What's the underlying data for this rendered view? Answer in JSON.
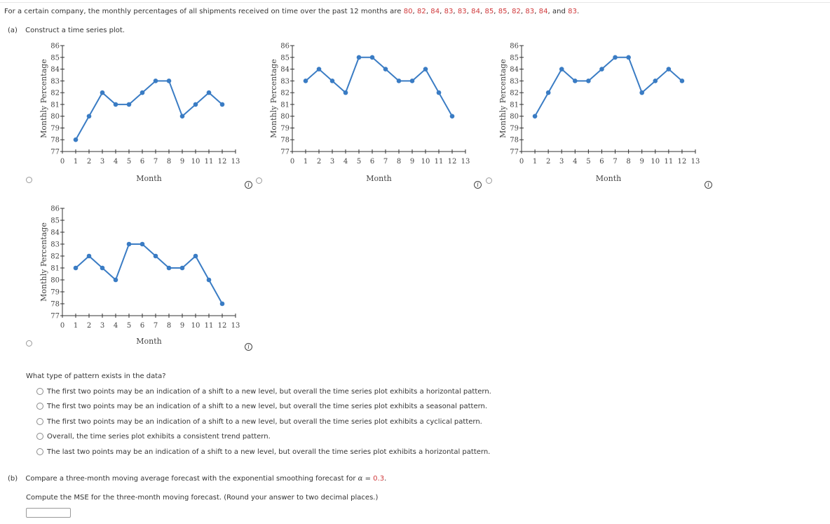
{
  "problem": {
    "intro_prefix": "For a certain company, the monthly percentages of all shipments received on time over the past 12 months are ",
    "values": [
      "80",
      "82",
      "84",
      "83",
      "83",
      "84",
      "85",
      "85",
      "82",
      "83",
      "84"
    ],
    "last_value": "83",
    "and_word": "and",
    "accent_color": "#d0393b"
  },
  "part_a": {
    "label": "(a)",
    "instruction": "Construct a time series plot."
  },
  "chart_data": [
    {
      "type": "line",
      "id": "option-1",
      "title": "",
      "xlabel": "Month",
      "ylabel": "Monthly Percentage",
      "x": [
        1,
        2,
        3,
        4,
        5,
        6,
        7,
        8,
        9,
        10,
        11,
        12
      ],
      "values": [
        78,
        80,
        82,
        81,
        81,
        82,
        83,
        83,
        80,
        81,
        82,
        81
      ],
      "xlim": [
        0,
        13
      ],
      "ylim": [
        77,
        86
      ],
      "xticks": [
        "0",
        "1",
        "2",
        "3",
        "4",
        "5",
        "6",
        "7",
        "8",
        "9",
        "10",
        "11",
        "12",
        "13"
      ],
      "yticks": [
        "77",
        "78",
        "79",
        "80",
        "81",
        "82",
        "83",
        "84",
        "85",
        "86"
      ],
      "grid": false,
      "line_color": "#3a7cc4"
    },
    {
      "type": "line",
      "id": "option-2",
      "title": "",
      "xlabel": "Month",
      "ylabel": "Monthly Percentage",
      "x": [
        1,
        2,
        3,
        4,
        5,
        6,
        7,
        8,
        9,
        10,
        11,
        12
      ],
      "values": [
        83,
        84,
        83,
        82,
        85,
        85,
        84,
        83,
        83,
        84,
        82,
        80
      ],
      "xlim": [
        0,
        13
      ],
      "ylim": [
        77,
        86
      ],
      "xticks": [
        "0",
        "1",
        "2",
        "3",
        "4",
        "5",
        "6",
        "7",
        "8",
        "9",
        "10",
        "11",
        "12",
        "13"
      ],
      "yticks": [
        "77",
        "78",
        "79",
        "80",
        "81",
        "82",
        "83",
        "84",
        "85",
        "86"
      ],
      "grid": false,
      "line_color": "#3a7cc4"
    },
    {
      "type": "line",
      "id": "option-3",
      "title": "",
      "xlabel": "Month",
      "ylabel": "Monthly Percentage",
      "x": [
        1,
        2,
        3,
        4,
        5,
        6,
        7,
        8,
        9,
        10,
        11,
        12
      ],
      "values": [
        80,
        82,
        84,
        83,
        83,
        84,
        85,
        85,
        82,
        83,
        84,
        83
      ],
      "xlim": [
        0,
        13
      ],
      "ylim": [
        77,
        86
      ],
      "xticks": [
        "0",
        "1",
        "2",
        "3",
        "4",
        "5",
        "6",
        "7",
        "8",
        "9",
        "10",
        "11",
        "12",
        "13"
      ],
      "yticks": [
        "77",
        "78",
        "79",
        "80",
        "81",
        "82",
        "83",
        "84",
        "85",
        "86"
      ],
      "grid": false,
      "line_color": "#3a7cc4"
    },
    {
      "type": "line",
      "id": "option-4",
      "title": "",
      "xlabel": "Month",
      "ylabel": "Monthly Percentage",
      "x": [
        1,
        2,
        3,
        4,
        5,
        6,
        7,
        8,
        9,
        10,
        11,
        12
      ],
      "values": [
        81,
        82,
        81,
        80,
        83,
        83,
        82,
        81,
        81,
        82,
        80,
        78
      ],
      "xlim": [
        0,
        13
      ],
      "ylim": [
        77,
        86
      ],
      "xticks": [
        "0",
        "1",
        "2",
        "3",
        "4",
        "5",
        "6",
        "7",
        "8",
        "9",
        "10",
        "11",
        "12",
        "13"
      ],
      "yticks": [
        "77",
        "78",
        "79",
        "80",
        "81",
        "82",
        "83",
        "84",
        "85",
        "86"
      ],
      "grid": false,
      "line_color": "#3a7cc4"
    }
  ],
  "info_icon": {
    "glyph": "i",
    "name": "info-icon"
  },
  "pattern_question": {
    "prompt": "What type of pattern exists in the data?",
    "options": [
      "The first two points may be an indication of a shift to a new level, but overall the time series plot exhibits a horizontal pattern.",
      "The first two points may be an indication of a shift to a new level, but overall the time series plot exhibits a seasonal pattern.",
      "The first two points may be an indication of a shift to a new level, but overall the time series plot exhibits a cyclical pattern.",
      "Overall, the time series plot exhibits a consistent trend pattern.",
      "The last two points may be an indication of a shift to a new level, but overall the time series plot exhibits a horizontal pattern."
    ]
  },
  "part_b": {
    "label": "(b)",
    "instruction_prefix": "Compare a three-month moving average forecast with the exponential smoothing forecast for ",
    "alpha_symbol": "α",
    "equals": " = ",
    "alpha_value": "0.3",
    "period": ".",
    "compute_prompt": "Compute the MSE for the three-month moving forecast. (Round your answer to two decimal places.)",
    "answer_value": ""
  }
}
